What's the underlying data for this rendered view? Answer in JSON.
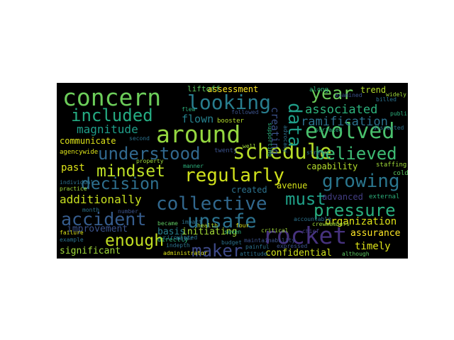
{
  "wordcloud": {
    "words": {
      "concern": "concern",
      "around": "around",
      "rocket": "rocket",
      "evolved": "evolved",
      "schedule": "schedule",
      "looking": "looking",
      "included": "included",
      "year": "year",
      "understood": "understood",
      "believed": "believed",
      "regularly": "regularly",
      "mindset": "mindset",
      "decision": "decision",
      "collective": "collective",
      "must": "must",
      "growing": "growing",
      "accident": "accident",
      "unsafe": "unsafe",
      "pressure": "pressure",
      "enough": "enough",
      "maker": "maker",
      "data": "data",
      "associated": "associated",
      "ramification": "ramification",
      "magnitude": "magnitude",
      "flown": "flown",
      "creating": "creating",
      "additionally": "additionally",
      "improvement": "improvement",
      "organization": "organization",
      "timely": "timely",
      "assurance": "assurance",
      "significant": "significant",
      "confidential": "confidential",
      "basis": "basis",
      "initiating": "initiating",
      "advanced": "advanced",
      "created": "created",
      "avenue": "avenue",
      "communicate": "communicate",
      "past": "past",
      "capability": "capability",
      "assessment": "assessment",
      "liftoff": "liftoff",
      "trend": "trend",
      "administrator": "administrator",
      "along": "along",
      "booster": "booster",
      "followed": "followed",
      "twenty": "twenty",
      "seven": "seven",
      "four": "four",
      "well": "well",
      "stress": "stress",
      "staffing": "staffing",
      "cold": "cold",
      "external": "external",
      "expressed": "expressed",
      "although": "although",
      "critical": "critical",
      "chief": "chief",
      "accountable": "accountable",
      "maintainability": "maintainability",
      "painful": "painful",
      "directly": "directly",
      "indepth": "indepth",
      "circulated": "circulated",
      "health": "health",
      "became": "became",
      "impact": "impact",
      "manner": "manner",
      "property": "property",
      "agencywide": "agencywide",
      "second": "second",
      "month": "month",
      "number": "number",
      "failure": "failure",
      "example": "example",
      "practice": "practice",
      "individual": "individual",
      "budget": "budget",
      "attitude": "attitude",
      "crewmembers": "crewmembers",
      "examined": "examined",
      "billed": "billed",
      "widely": "widely",
      "public": "public",
      "dissected": "dissected",
      "surfaced": "surfaced",
      "major": "major",
      "flew": "flew",
      "advocacy": "advocacy",
      "supporting": "supporting"
    }
  }
}
